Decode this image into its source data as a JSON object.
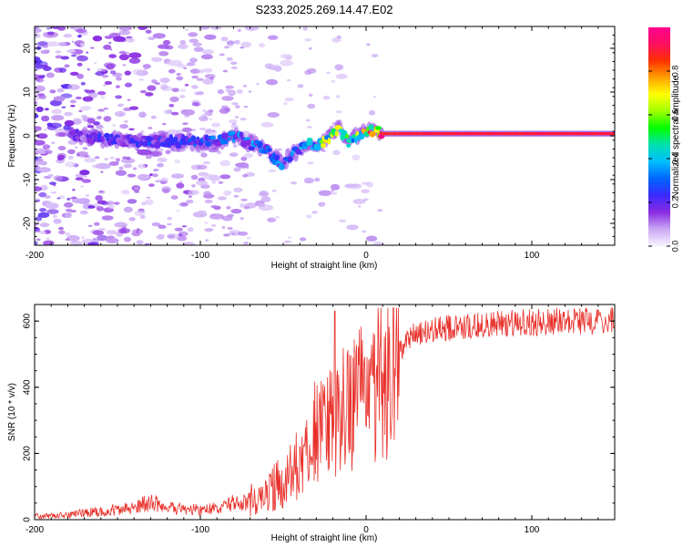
{
  "title": "S233.2025.269.14.47.E02",
  "colors": {
    "snr_line": "#e8302a",
    "colormap": [
      "#f7f2ff",
      "#c9a7f5",
      "#8a2be2",
      "#3a2bff",
      "#0066ff",
      "#00bfff",
      "#00e0b0",
      "#00ff00",
      "#a0ff00",
      "#ffff00",
      "#ffa000",
      "#ff3000",
      "#ff1060",
      "#ff0090"
    ]
  },
  "chart_data": [
    {
      "type": "heatmap",
      "title": "S233.2025.269.14.47.E02",
      "xlabel": "Height of straight line (km)",
      "ylabel": "Frequency (Hz)",
      "xlim": [
        -200,
        150
      ],
      "ylim": [
        -25,
        25
      ],
      "xticks": [
        -200,
        -100,
        0,
        100
      ],
      "xtick_labels": [
        "-200",
        "-100",
        "0",
        "100"
      ],
      "yticks": [
        -20,
        -10,
        0,
        10,
        20
      ],
      "ytick_labels": [
        "-20",
        "-10",
        "0",
        "10",
        "20"
      ],
      "colorbar": {
        "label": "Normalized spectral amplitude",
        "range": [
          0,
          1
        ],
        "ticks": [
          0.0,
          0.2,
          0.4,
          0.6,
          0.8
        ],
        "tick_labels": [
          "0.0",
          "0.2",
          "0.4",
          "0.6",
          "0.8"
        ]
      },
      "ridge": {
        "x": [
          -175,
          -160,
          -140,
          -120,
          -100,
          -85,
          -78,
          -70,
          -60,
          -55,
          -50,
          -45,
          -40,
          -35,
          -30,
          -25,
          -20,
          -17,
          -14,
          -10,
          -6,
          -2,
          2,
          6,
          10,
          20,
          40,
          60,
          80,
          100,
          120,
          150
        ],
        "frequency": [
          0.2,
          -0.8,
          -1.2,
          -1.2,
          -1.5,
          -0.8,
          0.2,
          -1.8,
          -3.0,
          -5.0,
          -6.5,
          -4.0,
          -3.5,
          -1.5,
          -2.5,
          -1.0,
          0.5,
          1.8,
          0.5,
          -1.8,
          0.0,
          0.5,
          1.5,
          1.2,
          0.5,
          0.5,
          0.5,
          0.5,
          0.5,
          0.5,
          0.5,
          0.5
        ],
        "amplitude": [
          0.15,
          0.2,
          0.22,
          0.24,
          0.25,
          0.28,
          0.3,
          0.3,
          0.32,
          0.3,
          0.3,
          0.32,
          0.35,
          0.4,
          0.45,
          0.55,
          0.6,
          0.55,
          0.5,
          0.45,
          0.5,
          0.6,
          0.7,
          0.8,
          0.85,
          0.88,
          0.9,
          0.9,
          0.9,
          0.9,
          0.9,
          0.9
        ]
      }
    },
    {
      "type": "line",
      "xlabel": "Height of straight line (km)",
      "ylabel": "SNR (10 * v/v)",
      "xlim": [
        -200,
        150
      ],
      "ylim": [
        0,
        650
      ],
      "xticks": [
        -200,
        -100,
        0,
        100
      ],
      "xtick_labels": [
        "-200",
        "-100",
        "0",
        "100"
      ],
      "yticks": [
        0,
        200,
        400,
        600
      ],
      "ytick_labels": [
        "0",
        "200",
        "400",
        "600"
      ],
      "series": [
        {
          "name": "SNR",
          "x": [
            -200,
            -180,
            -160,
            -140,
            -130,
            -120,
            -100,
            -90,
            -80,
            -70,
            -60,
            -50,
            -45,
            -40,
            -35,
            -30,
            -25,
            -20,
            -15,
            -10,
            -5,
            0,
            5,
            10,
            15,
            20,
            25,
            30,
            40,
            60,
            80,
            100,
            120,
            150
          ],
          "y": [
            10,
            15,
            25,
            35,
            55,
            35,
            30,
            35,
            50,
            60,
            80,
            120,
            140,
            170,
            220,
            270,
            300,
            330,
            340,
            350,
            360,
            370,
            400,
            420,
            460,
            510,
            540,
            560,
            575,
            585,
            590,
            595,
            600,
            600
          ],
          "peak": {
            "x": -19,
            "y": 630
          }
        }
      ]
    }
  ]
}
